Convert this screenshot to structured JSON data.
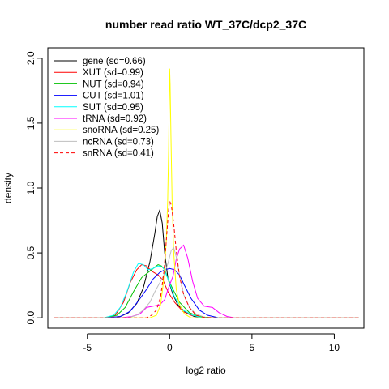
{
  "chart_data": {
    "type": "line",
    "title": "number read ratio WT_37C/dcp2_37C",
    "xlabel": "log2 ratio",
    "ylabel": "density",
    "xlim": [
      -7.4,
      11.8
    ],
    "ylim": [
      -0.08,
      2.08
    ],
    "x_ticks": [
      -5,
      0,
      5,
      10
    ],
    "x_tick_labels": [
      "-5",
      "0",
      "5",
      "10"
    ],
    "y_ticks": [
      0.0,
      0.5,
      1.0,
      1.5,
      2.0
    ],
    "y_tick_labels": [
      "0.0",
      "0.5",
      "1.0",
      "1.5",
      "2.0"
    ],
    "grid": false,
    "legend_position": "top-left",
    "series": [
      {
        "name": "gene (sd=0.66)",
        "color": "#000000",
        "dash": "solid",
        "points": [
          [
            -7,
            0
          ],
          [
            -4,
            0
          ],
          [
            -3,
            0.01
          ],
          [
            -2.5,
            0.04
          ],
          [
            -2,
            0.11
          ],
          [
            -1.6,
            0.23
          ],
          [
            -1.2,
            0.43
          ],
          [
            -0.9,
            0.65
          ],
          [
            -0.75,
            0.78
          ],
          [
            -0.6,
            0.83
          ],
          [
            -0.45,
            0.73
          ],
          [
            -0.3,
            0.5
          ],
          [
            -0.1,
            0.3
          ],
          [
            0.2,
            0.18
          ],
          [
            0.5,
            0.1
          ],
          [
            1,
            0.04
          ],
          [
            1.5,
            0.01
          ],
          [
            2.5,
            0
          ],
          [
            11.5,
            0
          ]
        ]
      },
      {
        "name": "XUT (sd=0.99)",
        "color": "#ff0000",
        "dash": "solid",
        "points": [
          [
            -7,
            0
          ],
          [
            -4,
            0
          ],
          [
            -3.3,
            0.02
          ],
          [
            -2.8,
            0.12
          ],
          [
            -2.4,
            0.27
          ],
          [
            -2,
            0.37
          ],
          [
            -1.7,
            0.41
          ],
          [
            -1.4,
            0.4
          ],
          [
            -1.1,
            0.36
          ],
          [
            -0.7,
            0.33
          ],
          [
            -0.4,
            0.29
          ],
          [
            -0.1,
            0.2
          ],
          [
            0.3,
            0.12
          ],
          [
            0.8,
            0.05
          ],
          [
            1.3,
            0.02
          ],
          [
            2,
            0.005
          ],
          [
            3,
            0
          ],
          [
            11.5,
            0
          ]
        ]
      },
      {
        "name": "NUT (sd=0.94)",
        "color": "#00c000",
        "dash": "solid",
        "points": [
          [
            -7,
            0
          ],
          [
            -4,
            0
          ],
          [
            -3.2,
            0.02
          ],
          [
            -2.7,
            0.08
          ],
          [
            -2.2,
            0.2
          ],
          [
            -1.7,
            0.31
          ],
          [
            -1.3,
            0.35
          ],
          [
            -1,
            0.38
          ],
          [
            -0.7,
            0.41
          ],
          [
            -0.5,
            0.4
          ],
          [
            -0.3,
            0.37
          ],
          [
            -0.1,
            0.3
          ],
          [
            0.2,
            0.22
          ],
          [
            0.6,
            0.12
          ],
          [
            1.2,
            0.04
          ],
          [
            1.8,
            0.01
          ],
          [
            2.5,
            0
          ],
          [
            11.5,
            0
          ]
        ]
      },
      {
        "name": "CUT (sd=1.01)",
        "color": "#0000ff",
        "dash": "solid",
        "points": [
          [
            -7,
            0
          ],
          [
            -4,
            0
          ],
          [
            -3,
            0.01
          ],
          [
            -2.4,
            0.05
          ],
          [
            -1.9,
            0.13
          ],
          [
            -1.4,
            0.22
          ],
          [
            -1,
            0.3
          ],
          [
            -0.6,
            0.35
          ],
          [
            -0.3,
            0.37
          ],
          [
            0,
            0.38
          ],
          [
            0.3,
            0.37
          ],
          [
            0.6,
            0.33
          ],
          [
            0.9,
            0.25
          ],
          [
            1.3,
            0.15
          ],
          [
            1.8,
            0.06
          ],
          [
            2.3,
            0.02
          ],
          [
            3,
            0
          ],
          [
            11.5,
            0
          ]
        ]
      },
      {
        "name": "SUT (sd=0.95)",
        "color": "#00ffff",
        "dash": "solid",
        "points": [
          [
            -7,
            0
          ],
          [
            -4,
            0
          ],
          [
            -3.4,
            0.02
          ],
          [
            -3,
            0.08
          ],
          [
            -2.6,
            0.2
          ],
          [
            -2.2,
            0.35
          ],
          [
            -1.9,
            0.42
          ],
          [
            -1.6,
            0.41
          ],
          [
            -1.3,
            0.37
          ],
          [
            -1,
            0.38
          ],
          [
            -0.7,
            0.4
          ],
          [
            -0.4,
            0.39
          ],
          [
            -0.1,
            0.3
          ],
          [
            0.3,
            0.16
          ],
          [
            0.8,
            0.06
          ],
          [
            1.4,
            0.02
          ],
          [
            2,
            0
          ],
          [
            11.5,
            0
          ]
        ]
      },
      {
        "name": "tRNA (sd=0.92)",
        "color": "#ff00ff",
        "dash": "solid",
        "points": [
          [
            -7,
            0
          ],
          [
            -3,
            0
          ],
          [
            -2.3,
            0.01
          ],
          [
            -1.8,
            0.03
          ],
          [
            -1.4,
            0.08
          ],
          [
            -1,
            0.09
          ],
          [
            -0.6,
            0.1
          ],
          [
            -0.3,
            0.14
          ],
          [
            -0.1,
            0.22
          ],
          [
            0.2,
            0.32
          ],
          [
            0.4,
            0.45
          ],
          [
            0.6,
            0.53
          ],
          [
            0.85,
            0.56
          ],
          [
            1.1,
            0.46
          ],
          [
            1.4,
            0.28
          ],
          [
            1.7,
            0.15
          ],
          [
            2.1,
            0.09
          ],
          [
            2.6,
            0.08
          ],
          [
            3,
            0.04
          ],
          [
            3.5,
            0.01
          ],
          [
            4,
            0
          ],
          [
            11.5,
            0
          ]
        ]
      },
      {
        "name": "snoRNA (sd=0.25)",
        "color": "#ffff00",
        "dash": "solid",
        "points": [
          [
            -7,
            0
          ],
          [
            -1.2,
            0
          ],
          [
            -0.8,
            0.02
          ],
          [
            -0.55,
            0.1
          ],
          [
            -0.4,
            0.25
          ],
          [
            -0.3,
            0.4
          ],
          [
            -0.2,
            0.6
          ],
          [
            -0.12,
            0.9
          ],
          [
            -0.06,
            1.3
          ],
          [
            -0.02,
            1.7
          ],
          [
            0,
            1.92
          ],
          [
            0.03,
            1.8
          ],
          [
            0.08,
            1.4
          ],
          [
            0.15,
            0.9
          ],
          [
            0.25,
            0.5
          ],
          [
            0.4,
            0.22
          ],
          [
            0.6,
            0.1
          ],
          [
            0.9,
            0.03
          ],
          [
            1.3,
            0
          ],
          [
            11.5,
            0
          ]
        ]
      },
      {
        "name": "ncRNA (sd=0.73)",
        "color": "#bebebe",
        "dash": "solid",
        "points": [
          [
            -7,
            0
          ],
          [
            -2.5,
            0
          ],
          [
            -2,
            0.02
          ],
          [
            -1.6,
            0.06
          ],
          [
            -1.2,
            0.12
          ],
          [
            -0.9,
            0.2
          ],
          [
            -0.6,
            0.27
          ],
          [
            -0.35,
            0.33
          ],
          [
            -0.1,
            0.42
          ],
          [
            0.1,
            0.52
          ],
          [
            0.25,
            0.54
          ],
          [
            0.4,
            0.47
          ],
          [
            0.6,
            0.33
          ],
          [
            0.85,
            0.18
          ],
          [
            1.2,
            0.08
          ],
          [
            1.6,
            0.03
          ],
          [
            2.2,
            0
          ],
          [
            11.5,
            0
          ]
        ]
      },
      {
        "name": "snRNA (sd=0.41)",
        "color": "#ff0000",
        "dash": "dashed",
        "points": [
          [
            -7,
            0
          ],
          [
            -1.4,
            0
          ],
          [
            -1.1,
            0.02
          ],
          [
            -0.8,
            0.06
          ],
          [
            -0.55,
            0.16
          ],
          [
            -0.35,
            0.35
          ],
          [
            -0.2,
            0.6
          ],
          [
            -0.05,
            0.85
          ],
          [
            0,
            0.9
          ],
          [
            0.1,
            0.87
          ],
          [
            0.25,
            0.72
          ],
          [
            0.4,
            0.52
          ],
          [
            0.6,
            0.32
          ],
          [
            0.85,
            0.18
          ],
          [
            1.2,
            0.08
          ],
          [
            1.6,
            0.02
          ],
          [
            2.2,
            0
          ],
          [
            11.5,
            0
          ]
        ]
      }
    ]
  }
}
